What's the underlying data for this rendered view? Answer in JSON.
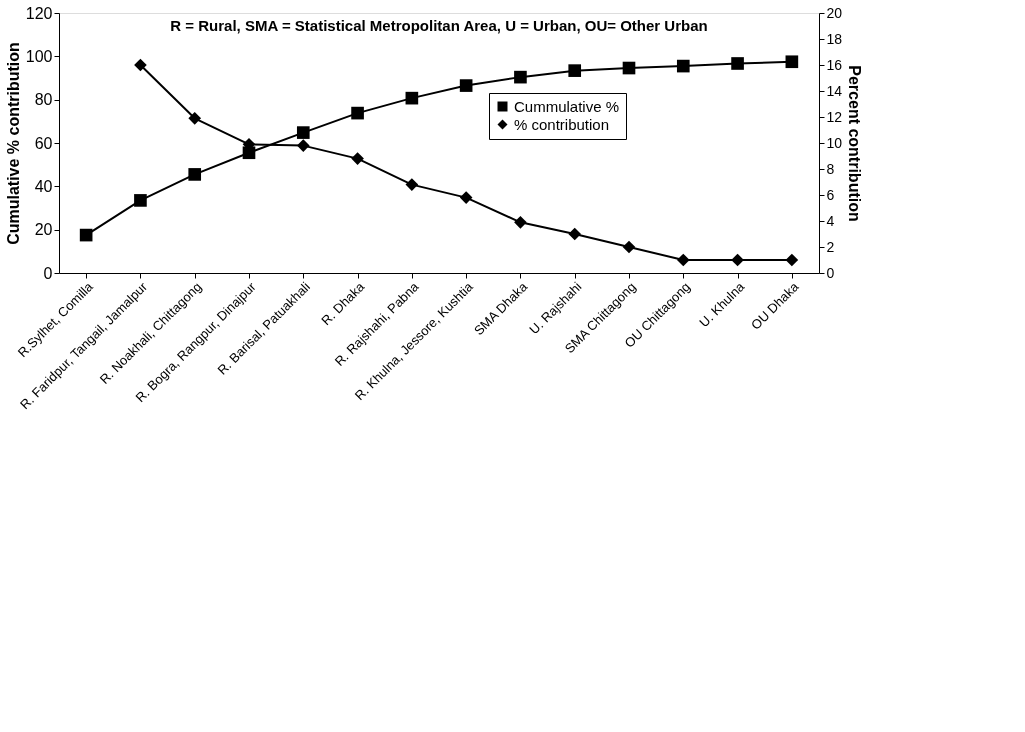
{
  "chart_data": {
    "type": "line",
    "categories": [
      "R.Sylhet, Comilla",
      "R. Faridpur, Tangail, Jamalpur",
      "R. Noakhali, Chittagong",
      "R. Bogra, Rangpur, Dinajpur",
      "R. Barisal, Patuakhali",
      "R. Dhaka",
      "R. Rajshahi, Pabna",
      "R. Khulna, Jessore, Kushtia",
      "SMA Dhaka",
      "U. Rajshahi",
      "SMA Chittagong",
      "OU Chittagong",
      "U. Khulna",
      "OU Dhaka"
    ],
    "series": [
      {
        "name": "Cummulative %",
        "color": "#000000",
        "marker": "square",
        "values": [
          17.5,
          33.5,
          45.5,
          55.5,
          64.8,
          73.8,
          80.7,
          86.5,
          90.4,
          93.4,
          94.6,
          95.5,
          96.7,
          97.5
        ]
      },
      {
        "name": "% contribution",
        "color": "#000000",
        "marker": "diamond",
        "axis": "y2",
        "values": [
          null,
          16,
          11.9,
          9.9,
          9.8,
          8.8,
          6.8,
          5.8,
          3.9,
          3.0,
          2.0,
          1.0,
          1.0,
          1.0
        ]
      }
    ],
    "ylabel": "Cumulative % contribution",
    "y2label": "Percent contribution",
    "ylim": [
      0,
      120
    ],
    "yticks": [
      0,
      20,
      40,
      60,
      80,
      100,
      120
    ],
    "y2lim": [
      0,
      20
    ],
    "y2ticks": [
      0,
      2,
      4,
      6,
      8,
      10,
      12,
      14,
      16,
      18,
      20
    ],
    "annotations": [
      "R = Rural, SMA = Statistical Metropolitan Area, U = Urban, OU= Other Urban"
    ],
    "legend": "top right",
    "grid": false
  }
}
